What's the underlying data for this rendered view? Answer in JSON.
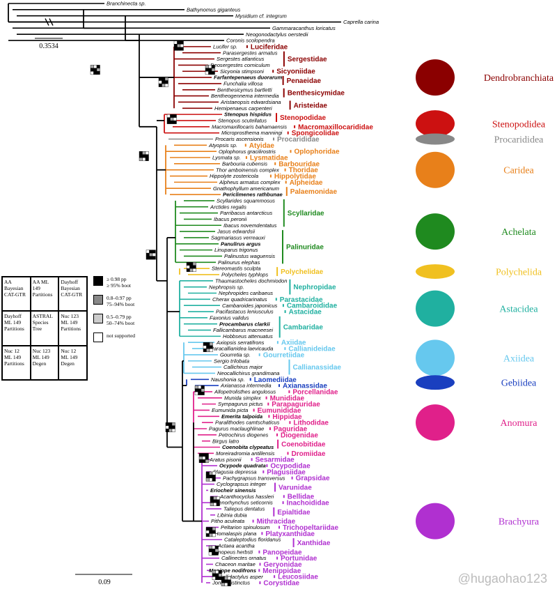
{
  "colors": {
    "Dendrobranchiata": "#8b0000",
    "Stenopodidea": "#cc1111",
    "Procarididea": "#888888",
    "Caridea": "#e8801a",
    "Achelata": "#1f8a1f",
    "Polychelida": "#f0c020",
    "Astacidea": "#20b0a0",
    "Axiidea": "#66c8ee",
    "Gebiidea": "#1a3fbf",
    "Anomura": "#e0208a",
    "Brachyura": "#b030d0"
  },
  "taxa": [
    {
      "name": "Branchinecta sp.",
      "clade": "outgroup"
    },
    {
      "name": "Bathynomus giganteus",
      "clade": "outgroup"
    },
    {
      "name": "Mysidium cf. integrum",
      "clade": "outgroup"
    },
    {
      "name": "Caprella carina",
      "clade": "outgroup"
    },
    {
      "name": "Gammaracanthus loricatus",
      "clade": "outgroup"
    },
    {
      "name": "Neogonodactylus oerstedii",
      "clade": "outgroup"
    },
    {
      "name": "Coronis scolopendra",
      "clade": "outgroup"
    },
    {
      "name": "Lucifer sp.",
      "clade": "Dendrobranchiata"
    },
    {
      "name": "Parasergestes armatus",
      "clade": "Dendrobranchiata"
    },
    {
      "name": "Sergestes atlanticus",
      "clade": "Dendrobranchiata"
    },
    {
      "name": "Deosergestes corniculum",
      "clade": "Dendrobranchiata"
    },
    {
      "name": "Sicyonia stimpsoni",
      "clade": "Dendrobranchiata"
    },
    {
      "name": "Farfantepenaeus duorarum",
      "clade": "Dendrobranchiata",
      "bold": true
    },
    {
      "name": "Funchalia villosa",
      "clade": "Dendrobranchiata"
    },
    {
      "name": "Benthesicymus bartletti",
      "clade": "Dendrobranchiata"
    },
    {
      "name": "Bentheogennema intermedia",
      "clade": "Dendrobranchiata"
    },
    {
      "name": "Aristaeopsis edwardsiana",
      "clade": "Dendrobranchiata"
    },
    {
      "name": "Hemipenaeus carpenteri",
      "clade": "Dendrobranchiata"
    },
    {
      "name": "Stenopus hispidus",
      "clade": "Stenopodidea",
      "bold": true
    },
    {
      "name": "Stenopus scutellatus",
      "clade": "Stenopodidea"
    },
    {
      "name": "Macromaxillocaris bahamaensis",
      "clade": "Stenopodidea"
    },
    {
      "name": "Microprosthema manningi",
      "clade": "Stenopodidea"
    },
    {
      "name": "Procaris ascensionis",
      "clade": "Procarididea"
    },
    {
      "name": "Atyopsis sp.",
      "clade": "Caridea"
    },
    {
      "name": "Oplophorus gracilirostris",
      "clade": "Caridea"
    },
    {
      "name": "Lysmata sp.",
      "clade": "Caridea"
    },
    {
      "name": "Barbouria cubensis",
      "clade": "Caridea"
    },
    {
      "name": "Thor amboinensis complex",
      "clade": "Caridea"
    },
    {
      "name": "Hippolyte zostericola",
      "clade": "Caridea"
    },
    {
      "name": "Alpheus armatus complex",
      "clade": "Caridea"
    },
    {
      "name": "Gnathophyllum americanum",
      "clade": "Caridea"
    },
    {
      "name": "Periclimenes rathbunae",
      "clade": "Caridea",
      "bold": true
    },
    {
      "name": "Scyllarides squammosus",
      "clade": "Achelata"
    },
    {
      "name": "Arctides regalis",
      "clade": "Achelata"
    },
    {
      "name": "Parribacus antarcticus",
      "clade": "Achelata"
    },
    {
      "name": "Ibacus peronii",
      "clade": "Achelata"
    },
    {
      "name": "Ibacus novemdentatus",
      "clade": "Achelata"
    },
    {
      "name": "Jasus edwardsii",
      "clade": "Achelata"
    },
    {
      "name": "Sagmariasus verreauxi",
      "clade": "Achelata"
    },
    {
      "name": "Panulirus argus",
      "clade": "Achelata",
      "bold": true
    },
    {
      "name": "Linuparus trigonus",
      "clade": "Achelata"
    },
    {
      "name": "Palinustus waguensis",
      "clade": "Achelata"
    },
    {
      "name": "Palinurus elephas",
      "clade": "Achelata"
    },
    {
      "name": "Stereomastis sculpta",
      "clade": "Polychelida"
    },
    {
      "name": "Polycheles typhlops",
      "clade": "Polychelida"
    },
    {
      "name": "Thaumastocheles dochmiodon",
      "clade": "Astacidea"
    },
    {
      "name": "Nephropsis sp.",
      "clade": "Astacidea"
    },
    {
      "name": "Nephropides caribaeus",
      "clade": "Astacidea"
    },
    {
      "name": "Cherax quadricarinatus",
      "clade": "Astacidea"
    },
    {
      "name": "Cambaroides japonicus",
      "clade": "Astacidea"
    },
    {
      "name": "Pacifastacus leniusculus",
      "clade": "Astacidea"
    },
    {
      "name": "Faxonius validus",
      "clade": "Astacidea"
    },
    {
      "name": "Procambarus clarkii",
      "clade": "Astacidea",
      "bold": true
    },
    {
      "name": "Fallicambarus macneesei",
      "clade": "Astacidea"
    },
    {
      "name": "Hobbseus attenuatus",
      "clade": "Astacidea"
    },
    {
      "name": "Axiopsis serratifrons",
      "clade": "Axiidea"
    },
    {
      "name": "Paracallianidea laevicauda",
      "clade": "Axiidea"
    },
    {
      "name": "Gourretia sp.",
      "clade": "Axiidea"
    },
    {
      "name": "Sergio trilobata",
      "clade": "Axiidea"
    },
    {
      "name": "Callichirus major",
      "clade": "Axiidea"
    },
    {
      "name": "Neocallichirus grandimana",
      "clade": "Axiidea"
    },
    {
      "name": "Naushonia sp.",
      "clade": "Gebiidea"
    },
    {
      "name": "Axianassa intermedia",
      "clade": "Gebiidea"
    },
    {
      "name": "Allopetrolisthes angulosus",
      "clade": "Anomura"
    },
    {
      "name": "Munida simplex",
      "clade": "Anomura"
    },
    {
      "name": "Sympagurus pictus",
      "clade": "Anomura"
    },
    {
      "name": "Eumunida picta",
      "clade": "Anomura"
    },
    {
      "name": "Emerita talpoida",
      "clade": "Anomura",
      "bold": true
    },
    {
      "name": "Paralithodes camtschaticus",
      "clade": "Anomura"
    },
    {
      "name": "Pagurus maclaughlinae",
      "clade": "Anomura"
    },
    {
      "name": "Petrochirus diogenes",
      "clade": "Anomura"
    },
    {
      "name": "Birgus latro",
      "clade": "Anomura"
    },
    {
      "name": "Coenobita clypeatus",
      "clade": "Anomura",
      "bold": true
    },
    {
      "name": "Moreiradromia antillensis",
      "clade": "Anomura"
    },
    {
      "name": "Aratus pisonii",
      "clade": "Brachyura"
    },
    {
      "name": "Ocypode quadrata",
      "clade": "Brachyura",
      "bold": true
    },
    {
      "name": "Plagusia depressa",
      "clade": "Brachyura"
    },
    {
      "name": "Pachygrapsus transversus",
      "clade": "Brachyura"
    },
    {
      "name": "Cyclograpsus integer",
      "clade": "Brachyura"
    },
    {
      "name": "Eriocheir sinensis",
      "clade": "Brachyura",
      "bold": true
    },
    {
      "name": "Acanthocyclus hassleri",
      "clade": "Brachyura"
    },
    {
      "name": "Stenorhynchus seticornis",
      "clade": "Brachyura"
    },
    {
      "name": "Taliepus dentatus",
      "clade": "Brachyura"
    },
    {
      "name": "Libinia dubia",
      "clade": "Brachyura"
    },
    {
      "name": "Pitho aculeata",
      "clade": "Brachyura"
    },
    {
      "name": "Peltarion spinulosum",
      "clade": "Brachyura"
    },
    {
      "name": "Homalaspis plana",
      "clade": "Brachyura"
    },
    {
      "name": "Cataleptodius floridanus",
      "clade": "Brachyura"
    },
    {
      "name": "Actaea acantha",
      "clade": "Brachyura"
    },
    {
      "name": "Panopeus herbsti",
      "clade": "Brachyura"
    },
    {
      "name": "Callinectes ornatus",
      "clade": "Brachyura"
    },
    {
      "name": "Chaceon maritae",
      "clade": "Brachyura"
    },
    {
      "name": "Menippe nodifrons",
      "clade": "Brachyura",
      "bold": true
    },
    {
      "name": "Callidactylus asper",
      "clade": "Brachyura"
    },
    {
      "name": "Jonas distinctus",
      "clade": "Brachyura"
    }
  ],
  "families": [
    {
      "name": "Luciferidae",
      "clade": "Dendrobranchiata",
      "from": 7,
      "to": 7
    },
    {
      "name": "Sergestidae",
      "clade": "Dendrobranchiata",
      "from": 8,
      "to": 10
    },
    {
      "name": "Sicyoniidae",
      "clade": "Dendrobranchiata",
      "from": 11,
      "to": 11
    },
    {
      "name": "Penaeidae",
      "clade": "Dendrobranchiata",
      "from": 12,
      "to": 13
    },
    {
      "name": "Benthesicymidae",
      "clade": "Dendrobranchiata",
      "from": 14,
      "to": 15
    },
    {
      "name": "Aristeidae",
      "clade": "Dendrobranchiata",
      "from": 16,
      "to": 17
    },
    {
      "name": "Stenopodidae",
      "clade": "Stenopodidea",
      "from": 18,
      "to": 19
    },
    {
      "name": "Macromaxillocarididae",
      "clade": "Stenopodidea",
      "from": 20,
      "to": 20
    },
    {
      "name": "Spongicolidae",
      "clade": "Stenopodidea",
      "from": 21,
      "to": 21
    },
    {
      "name": "Procarididae",
      "clade": "Procarididea",
      "from": 22,
      "to": 22
    },
    {
      "name": "Atyidae",
      "clade": "Caridea",
      "from": 23,
      "to": 23
    },
    {
      "name": "Oplophoridae",
      "clade": "Caridea",
      "from": 24,
      "to": 24
    },
    {
      "name": "Lysmatidae",
      "clade": "Caridea",
      "from": 25,
      "to": 25
    },
    {
      "name": "Barbouridae",
      "clade": "Caridea",
      "from": 26,
      "to": 26
    },
    {
      "name": "Thoridae",
      "clade": "Caridea",
      "from": 27,
      "to": 27
    },
    {
      "name": "Hippolytidae",
      "clade": "Caridea",
      "from": 28,
      "to": 28
    },
    {
      "name": "Alpheidae",
      "clade": "Caridea",
      "from": 29,
      "to": 29
    },
    {
      "name": "Palaemonidae",
      "clade": "Caridea",
      "from": 30,
      "to": 31
    },
    {
      "name": "Scyllaridae",
      "clade": "Achelata",
      "from": 32,
      "to": 36
    },
    {
      "name": "Palinuridae",
      "clade": "Achelata",
      "from": 37,
      "to": 42
    },
    {
      "name": "Polychelidae",
      "clade": "Polychelida",
      "from": 43,
      "to": 44
    },
    {
      "name": "Nephropidae",
      "clade": "Astacidea",
      "from": 45,
      "to": 47
    },
    {
      "name": "Parastacidae",
      "clade": "Astacidea",
      "from": 48,
      "to": 48
    },
    {
      "name": "Cambaroididae",
      "clade": "Astacidea",
      "from": 49,
      "to": 49
    },
    {
      "name": "Astacidae",
      "clade": "Astacidea",
      "from": 50,
      "to": 50
    },
    {
      "name": "Cambaridae",
      "clade": "Astacidea",
      "from": 51,
      "to": 54
    },
    {
      "name": "Axiidae",
      "clade": "Axiidea",
      "from": 55,
      "to": 55
    },
    {
      "name": "Callianideidae",
      "clade": "Axiidea",
      "from": 56,
      "to": 56
    },
    {
      "name": "Gourretiidae",
      "clade": "Axiidea",
      "from": 57,
      "to": 57
    },
    {
      "name": "Callianassidae",
      "clade": "Axiidea",
      "from": 58,
      "to": 60
    },
    {
      "name": "Laomediidae",
      "clade": "Gebiidea",
      "from": 61,
      "to": 61
    },
    {
      "name": "Axianassidae",
      "clade": "Gebiidea",
      "from": 62,
      "to": 62
    },
    {
      "name": "Porcellanidae",
      "clade": "Anomura",
      "from": 63,
      "to": 63
    },
    {
      "name": "Munididae",
      "clade": "Anomura",
      "from": 64,
      "to": 64
    },
    {
      "name": "Parapaguridae",
      "clade": "Anomura",
      "from": 65,
      "to": 65
    },
    {
      "name": "Eumunididae",
      "clade": "Anomura",
      "from": 66,
      "to": 66
    },
    {
      "name": "Hippidae",
      "clade": "Anomura",
      "from": 67,
      "to": 67
    },
    {
      "name": "Lithodidae",
      "clade": "Anomura",
      "from": 68,
      "to": 68
    },
    {
      "name": "Paguridae",
      "clade": "Anomura",
      "from": 69,
      "to": 69
    },
    {
      "name": "Diogenidae",
      "clade": "Anomura",
      "from": 70,
      "to": 70
    },
    {
      "name": "Coenobitidae",
      "clade": "Anomura",
      "from": 71,
      "to": 72
    },
    {
      "name": "Dromiidae",
      "clade": "Anomura",
      "from": 73,
      "to": 73
    },
    {
      "name": "Sesarmidae",
      "clade": "Brachyura",
      "from": 74,
      "to": 74
    },
    {
      "name": "Ocypodidae",
      "clade": "Brachyura",
      "from": 75,
      "to": 75
    },
    {
      "name": "Plagusiidae",
      "clade": "Brachyura",
      "from": 76,
      "to": 76
    },
    {
      "name": "Grapsidae",
      "clade": "Brachyura",
      "from": 77,
      "to": 77
    },
    {
      "name": "Varunidae",
      "clade": "Brachyura",
      "from": 78,
      "to": 79
    },
    {
      "name": "Bellidae",
      "clade": "Brachyura",
      "from": 80,
      "to": 80
    },
    {
      "name": "Inachoididae",
      "clade": "Brachyura",
      "from": 81,
      "to": 81
    },
    {
      "name": "Epialtidae",
      "clade": "Brachyura",
      "from": 82,
      "to": 83
    },
    {
      "name": "Mithracidae",
      "clade": "Brachyura",
      "from": 84,
      "to": 84
    },
    {
      "name": "Trichopeltariidae",
      "clade": "Brachyura",
      "from": 85,
      "to": 85
    },
    {
      "name": "Platyxanthidae",
      "clade": "Brachyura",
      "from": 86,
      "to": 86
    },
    {
      "name": "Xanthidae",
      "clade": "Brachyura",
      "from": 87,
      "to": 88
    },
    {
      "name": "Panopeidae",
      "clade": "Brachyura",
      "from": 89,
      "to": 89
    },
    {
      "name": "Portunidae",
      "clade": "Brachyura",
      "from": 90,
      "to": 90
    },
    {
      "name": "Geryonidae",
      "clade": "Brachyura",
      "from": 91,
      "to": 91
    },
    {
      "name": "Menippidae",
      "clade": "Brachyura",
      "from": 92,
      "to": 92
    },
    {
      "name": "Leucosiidae",
      "clade": "Brachyura",
      "from": 93,
      "to": 93
    },
    {
      "name": "Corystidae",
      "clade": "Brachyura",
      "from": 94,
      "to": 94
    }
  ],
  "groups": [
    {
      "name": "Dendrobranchiata",
      "from": 7,
      "to": 17
    },
    {
      "name": "Stenopodidea",
      "from": 18,
      "to": 21
    },
    {
      "name": "Procarididea",
      "from": 22,
      "to": 22
    },
    {
      "name": "Caridea",
      "from": 23,
      "to": 31
    },
    {
      "name": "Achelata",
      "from": 32,
      "to": 42
    },
    {
      "name": "Polychelida",
      "from": 43,
      "to": 44
    },
    {
      "name": "Astacidea",
      "from": 45,
      "to": 54
    },
    {
      "name": "Axiidea",
      "from": 55,
      "to": 60
    },
    {
      "name": "Gebiidea",
      "from": 61,
      "to": 62
    },
    {
      "name": "Anomura",
      "from": 63,
      "to": 73
    },
    {
      "name": "Brachyura",
      "from": 74,
      "to": 94
    }
  ],
  "scale_bars": [
    {
      "label": "0.3534"
    },
    {
      "label": "0.09"
    }
  ],
  "legend": {
    "cells": [
      "AA Bayesian CAT-GTR",
      "AA ML 149 Partitions",
      "Dayhoff Bayesian CAT-GTR",
      "Dayhoff ML 149 Partitions",
      "ASTRAL Species Tree",
      "Nuc 123 ML 149 Partitions",
      "Nuc 12 ML 149 Partitions",
      "Nuc 123 ML 149 Degen",
      "Nuc 12 ML 149 Degen"
    ],
    "keys": [
      {
        "color": "#000000",
        "text": "≥ 0.98 pp\n≥ 95% boot"
      },
      {
        "color": "#888888",
        "text": "0.8–0.97 pp\n75–94% boot"
      },
      {
        "color": "#cccccc",
        "text": "0.5–0.79 pp\n50–74% boot"
      },
      {
        "color": "#ffffff",
        "text": "not supported"
      }
    ]
  },
  "watermark": "@hugaohao123"
}
